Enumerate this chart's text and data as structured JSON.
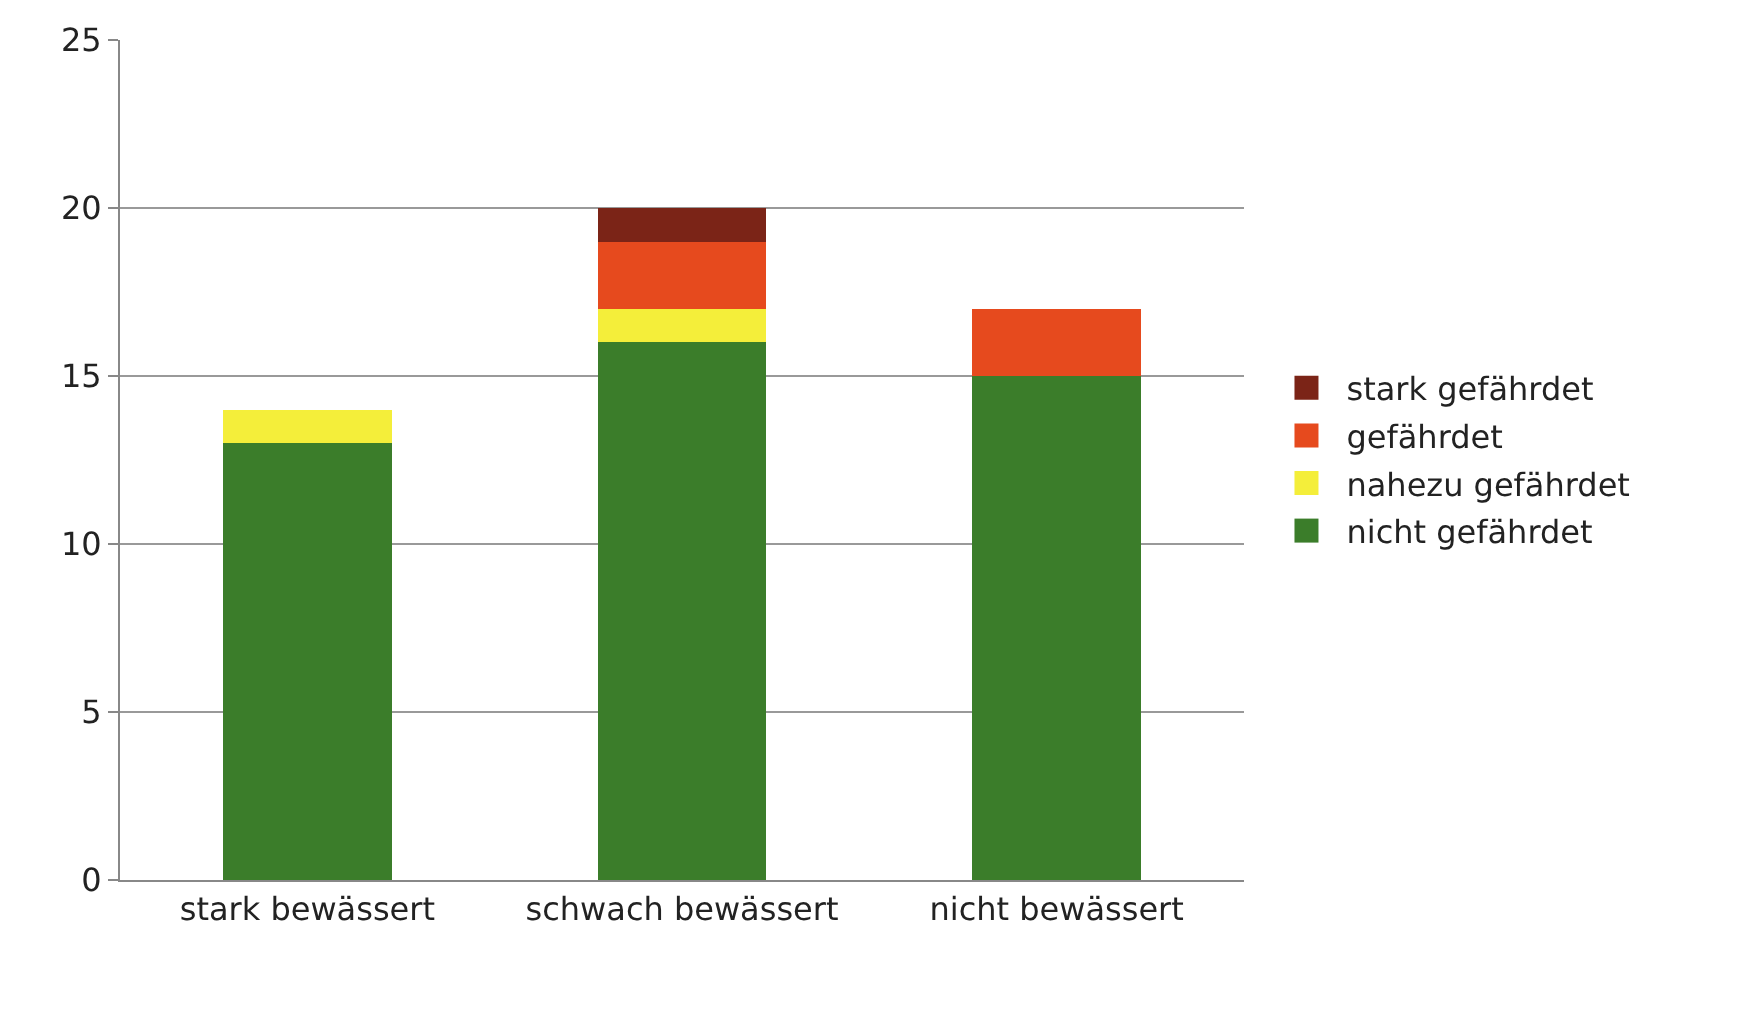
{
  "chart_data": {
    "type": "bar",
    "stacked": true,
    "categories": [
      "stark bewässert",
      "schwach bewässert",
      "nicht bewässert"
    ],
    "series": [
      {
        "name": "nicht gefährdet",
        "color": "#3b7d2a",
        "values": [
          13,
          16,
          15
        ]
      },
      {
        "name": "nahezu gefährdet",
        "color": "#f4ee3a",
        "values": [
          1,
          1,
          null
        ]
      },
      {
        "name": "gefährdet",
        "color": "#e64a1e",
        "values": [
          null,
          2,
          2
        ]
      },
      {
        "name": "stark gefährdet",
        "color": "#7b2417",
        "values": [
          null,
          1,
          null
        ]
      }
    ],
    "ylim": [
      0,
      25
    ],
    "yticks": [
      0,
      5,
      10,
      15,
      20,
      25
    ],
    "grid": "y",
    "legend": "right"
  }
}
